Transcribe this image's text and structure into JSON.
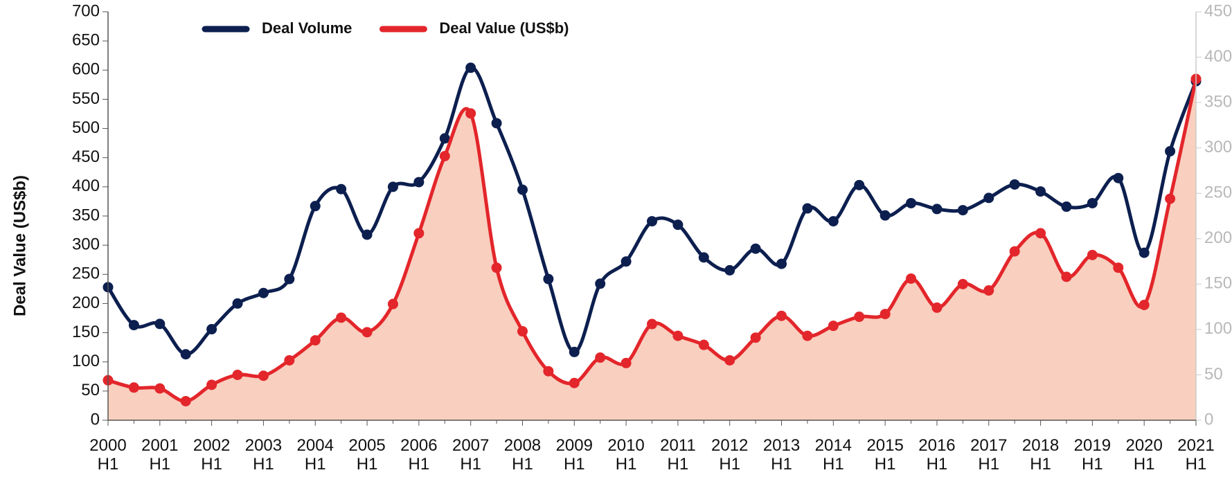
{
  "chart_data": {
    "type": "line",
    "y_axis_label": "Deal Value (US$b)",
    "categories": [
      "2000 H1",
      null,
      "2001 H1",
      null,
      "2002 H1",
      null,
      "2003 H1",
      null,
      "2004 H1",
      null,
      "2005 H1",
      null,
      "2006 H1",
      null,
      "2007 H1",
      null,
      "2008 H1",
      null,
      "2009 H1",
      null,
      "2010 H1",
      null,
      "2011 H1",
      null,
      "2012 H1",
      null,
      "2013 H1",
      null,
      "2014 H1",
      null,
      "2015 H1",
      null,
      "2016 H1",
      null,
      "2017 H1",
      null,
      "2018 H1",
      null,
      "2019 H1",
      null,
      "2020 H1",
      null,
      "2021 H1"
    ],
    "series": [
      {
        "name": "Deal Volume",
        "color": "#0c1f4f",
        "values": [
          228,
          163,
          165,
          113,
          156,
          200,
          218,
          242,
          367,
          396,
          318,
          400,
          408,
          483,
          604,
          509,
          395,
          242,
          117,
          234,
          272,
          341,
          335,
          279,
          257,
          294,
          268,
          363,
          341,
          403,
          351,
          372,
          362,
          360,
          381,
          404,
          392,
          366,
          372,
          415,
          287,
          461,
          581
        ]
      },
      {
        "name": "Deal Value (US$b)",
        "color": "#e3262b",
        "area_color": "#f9cfbf",
        "axis": "y2",
        "values": [
          44,
          36,
          35,
          21,
          39,
          50,
          49,
          66,
          88,
          113,
          97,
          128,
          206,
          291,
          338,
          168,
          98,
          54,
          41,
          69,
          63,
          106,
          93,
          83,
          66,
          91,
          115,
          93,
          104,
          114,
          117,
          156,
          124,
          150,
          143,
          186,
          206,
          158,
          182,
          168,
          127,
          244,
          376
        ]
      }
    ],
    "ylim": [
      0,
      700
    ],
    "yticks": [
      0,
      50,
      100,
      150,
      200,
      250,
      300,
      350,
      400,
      450,
      500,
      550,
      600,
      650,
      700
    ],
    "y2lim": [
      0,
      450
    ],
    "y2ticks": [
      0,
      50,
      100,
      150,
      200,
      250,
      300,
      350,
      400,
      450
    ],
    "legend": "top-left"
  }
}
